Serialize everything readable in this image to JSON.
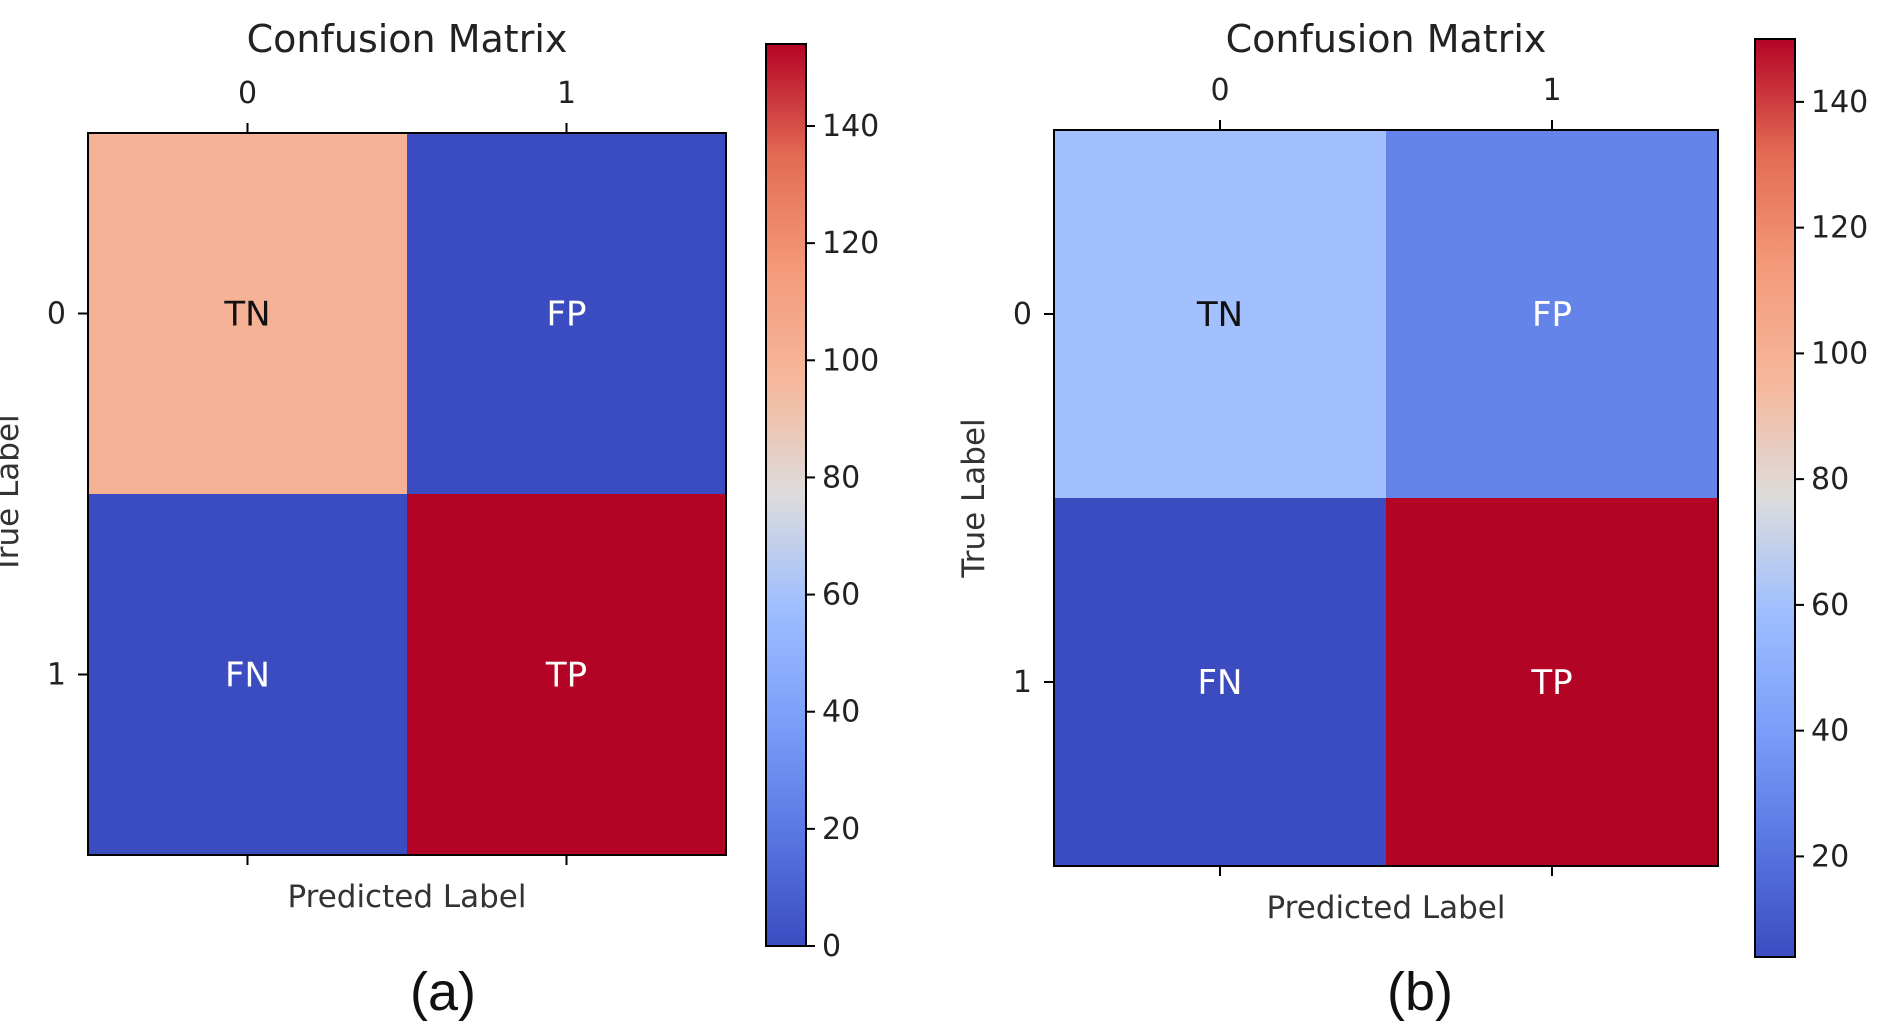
{
  "chart_data": [
    {
      "type": "heatmap",
      "title": "Confusion Matrix",
      "xlabel": "Predicted Label",
      "ylabel": "True Label",
      "x_categories": [
        "0",
        "1"
      ],
      "y_categories": [
        "0",
        "1"
      ],
      "cell_labels": [
        [
          "TN",
          "FP"
        ],
        [
          "FN",
          "TP"
        ]
      ],
      "values": [
        [
          100,
          0
        ],
        [
          0,
          154
        ]
      ],
      "colorbar": {
        "range": [
          0,
          154
        ],
        "ticks": [
          0,
          20,
          40,
          60,
          80,
          100,
          120,
          140
        ],
        "colormap": "coolwarm"
      },
      "caption": "(a)"
    },
    {
      "type": "heatmap",
      "title": "Confusion Matrix",
      "xlabel": "Predicted Label",
      "ylabel": "True Label",
      "x_categories": [
        "0",
        "1"
      ],
      "y_categories": [
        "0",
        "1"
      ],
      "cell_labels": [
        [
          "TN",
          "FP"
        ],
        [
          "FN",
          "TP"
        ]
      ],
      "values": [
        [
          60,
          28
        ],
        [
          4,
          150
        ]
      ],
      "colorbar": {
        "range": [
          4,
          150
        ],
        "ticks": [
          20,
          40,
          60,
          80,
          100,
          120,
          140
        ],
        "colormap": "coolwarm"
      },
      "caption": "(b)"
    }
  ]
}
